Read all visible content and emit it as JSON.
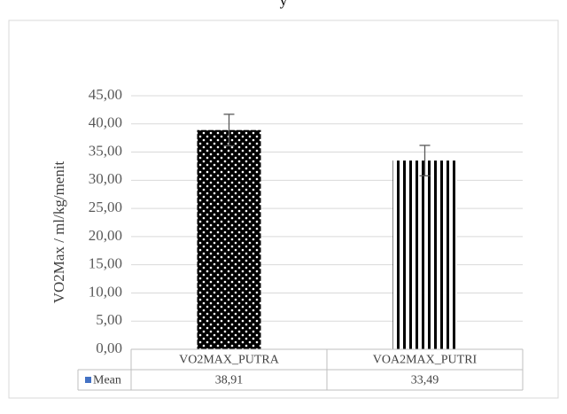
{
  "top_text": "y",
  "chart_data": {
    "type": "bar",
    "title": "",
    "xlabel": "",
    "ylabel": "VO2Max / ml/kg/menit",
    "ylim": [
      0,
      45
    ],
    "y_ticks": [
      "0,00",
      "5,00",
      "10,00",
      "15,00",
      "20,00",
      "25,00",
      "30,00",
      "35,00",
      "40,00",
      "45,00"
    ],
    "grid": true,
    "categories": [
      "VO2MAX_PUTRA",
      "VOA2MAX_PUTRI"
    ],
    "series": [
      {
        "name": "Mean",
        "values": [
          38.91,
          33.49
        ],
        "value_labels": [
          "38,91",
          "33,49"
        ],
        "error": [
          2.8,
          2.7
        ],
        "patterns": [
          "dots",
          "vertical-lines"
        ]
      }
    ],
    "legend": "data-table",
    "colors": {
      "bar": "#000000",
      "grid": "#d9d9d9",
      "axis": "#bfbfbf",
      "error_bar": "#595959",
      "legend_key": "#4472c4"
    }
  }
}
